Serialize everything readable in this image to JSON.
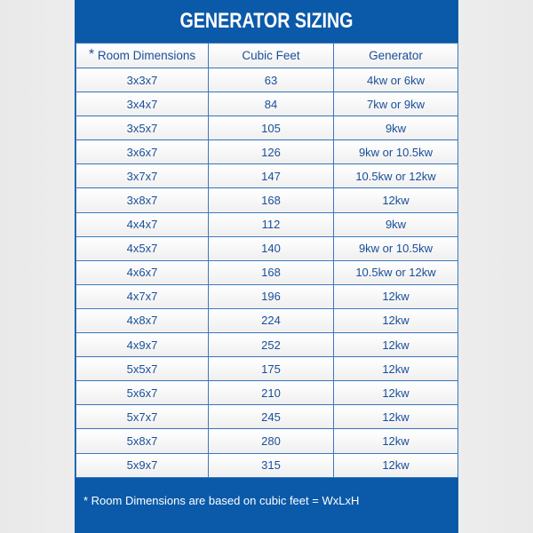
{
  "title": "GENERATOR SIZING",
  "headers": {
    "star": "*",
    "room": "Room Dimensions",
    "cubic": "Cubic Feet",
    "generator": "Generator"
  },
  "rows": [
    [
      "3x3x7",
      "63",
      "4kw or 6kw"
    ],
    [
      "3x4x7",
      "84",
      "7kw or 9kw"
    ],
    [
      "3x5x7",
      "105",
      "9kw"
    ],
    [
      "3x6x7",
      "126",
      "9kw or 10.5kw"
    ],
    [
      "3x7x7",
      "147",
      "10.5kw or 12kw"
    ],
    [
      "3x8x7",
      "168",
      "12kw"
    ],
    [
      "4x4x7",
      "112",
      "9kw"
    ],
    [
      "4x5x7",
      "140",
      "9kw or 10.5kw"
    ],
    [
      "4x6x7",
      "168",
      "10.5kw or 12kw"
    ],
    [
      "4x7x7",
      "196",
      "12kw"
    ],
    [
      "4x8x7",
      "224",
      "12kw"
    ],
    [
      "4x9x7",
      "252",
      "12kw"
    ],
    [
      "5x5x7",
      "175",
      "12kw"
    ],
    [
      "5x6x7",
      "210",
      "12kw"
    ],
    [
      "5x7x7",
      "245",
      "12kw"
    ],
    [
      "5x8x7",
      "280",
      "12kw"
    ],
    [
      "5x9x7",
      "315",
      "12kw"
    ]
  ],
  "footnote": "* Room Dimensions are based on cubic feet = WxLxH",
  "colors": {
    "panel": "#0b5aa9",
    "text": "#1a4f9a"
  }
}
